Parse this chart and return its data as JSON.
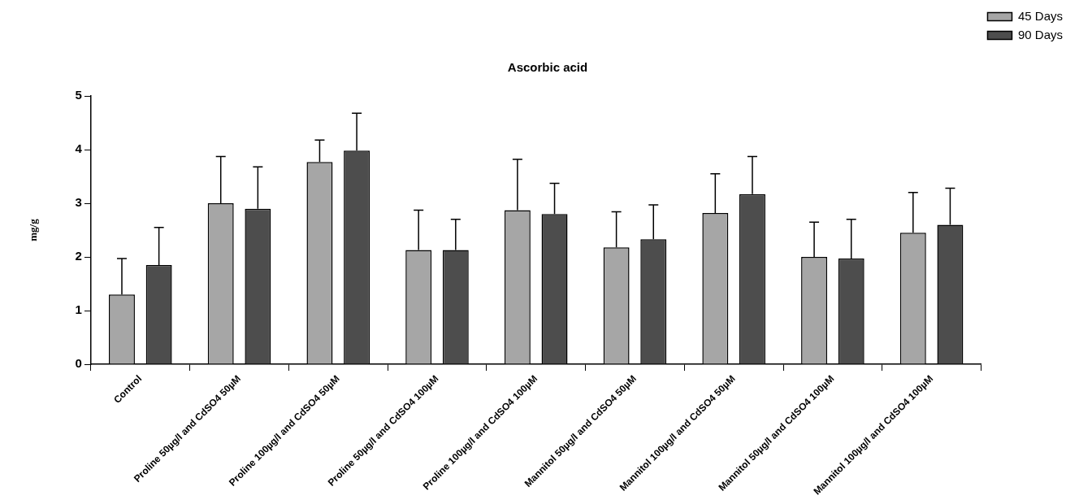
{
  "chart_data": {
    "type": "bar",
    "title": "Ascorbic acid",
    "ylabel": "mg/g",
    "categories": [
      "Control",
      "Proline 50µg/l and CdSO4 50µM",
      "Proline 100µg/l and CdSO4 50µM",
      "Proline 50µg/l and CdSO4 100µM",
      "Proline 100µg/l and CdSO4 100µM",
      "Mannitol 50µg/l and CdSO4 50µM",
      "Mannitol 100µg/l and CdSO4 50µM",
      "Mannitol 50µg/l and CdSO4 100µM",
      "Mannitol 100µg/l and CdSO4 100µM"
    ],
    "series": [
      {
        "name": "45 Days",
        "color": "#a6a6a6",
        "values": [
          1.3,
          3.0,
          3.77,
          2.13,
          2.87,
          2.18,
          2.82,
          2.0,
          2.45
        ],
        "errors": [
          [
            1.3,
            1.97
          ],
          [
            3.0,
            3.87
          ],
          [
            3.77,
            4.18
          ],
          [
            2.13,
            2.87
          ],
          [
            2.87,
            3.82
          ],
          [
            2.18,
            2.84
          ],
          [
            2.82,
            3.55
          ],
          [
            2.0,
            2.65
          ],
          [
            2.45,
            3.2
          ]
        ]
      },
      {
        "name": "90 Days",
        "color": "#4d4d4d",
        "values": [
          1.85,
          2.9,
          3.98,
          2.13,
          2.8,
          2.33,
          3.17,
          1.97,
          2.6
        ],
        "errors": [
          [
            1.85,
            2.55
          ],
          [
            2.9,
            3.68
          ],
          [
            3.98,
            4.68
          ],
          [
            2.13,
            2.7
          ],
          [
            2.8,
            3.37
          ],
          [
            2.33,
            2.97
          ],
          [
            3.17,
            3.87
          ],
          [
            1.97,
            2.7
          ],
          [
            2.6,
            3.28
          ]
        ]
      }
    ],
    "ylim": [
      0,
      5
    ],
    "yticks": [
      0,
      1,
      2,
      3,
      4,
      5
    ],
    "grid": false,
    "legend": "top right"
  }
}
